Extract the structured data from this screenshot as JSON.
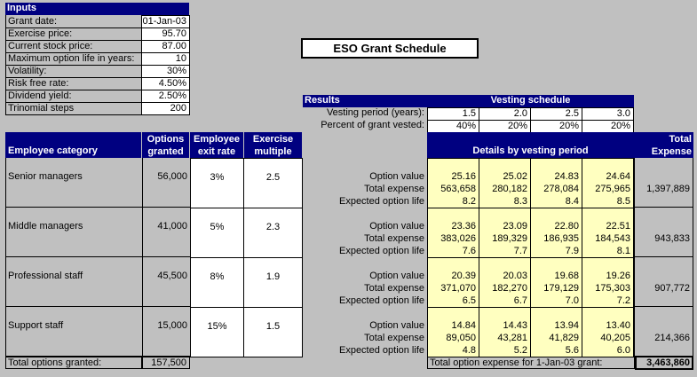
{
  "inputs": {
    "title": "Inputs",
    "rows": [
      {
        "label": "Grant date:",
        "value": "01-Jan-03"
      },
      {
        "label": "Exercise price:",
        "value": "95.70"
      },
      {
        "label": "Current stock price:",
        "value": "87.00"
      },
      {
        "label": "Maximum option life in years:",
        "value": "10"
      },
      {
        "label": "Volatility:",
        "value": "30%"
      },
      {
        "label": "Risk free rate:",
        "value": "4.50%"
      },
      {
        "label": "Dividend yield:",
        "value": "2.50%"
      },
      {
        "label": "Trinomial steps",
        "value": "200"
      }
    ]
  },
  "schedule_title": "ESO Grant Schedule",
  "results": {
    "title": "Results",
    "vesting_title": "Vesting schedule",
    "vesting_period_label": "Vesting period (years):",
    "vesting_periods": [
      "1.5",
      "2.0",
      "2.5",
      "3.0"
    ],
    "percent_vested_label": "Percent of grant vested:",
    "percent_vested": [
      "40%",
      "20%",
      "20%",
      "20%"
    ]
  },
  "table_headers": {
    "category": "Employee category",
    "options_granted": [
      "Options",
      "granted"
    ],
    "exit_rate": [
      "Employee",
      "exit rate"
    ],
    "exercise_multiple": [
      "Exercise",
      "multiple"
    ],
    "details": "Details by vesting period",
    "total_expense": [
      "Total",
      "Expense"
    ]
  },
  "row_labels": [
    "Option value",
    "Total expense",
    "Expected option life"
  ],
  "categories": [
    {
      "name": "Senior managers",
      "options": "56,000",
      "exit_rate": "3%",
      "multiple": "2.5",
      "option_value": [
        "25.16",
        "25.02",
        "24.83",
        "24.64"
      ],
      "total_expense": [
        "563,658",
        "280,182",
        "278,084",
        "275,965"
      ],
      "expected_life": [
        "8.2",
        "8.3",
        "8.4",
        "8.5"
      ],
      "total": "1,397,889"
    },
    {
      "name": "Middle managers",
      "options": "41,000",
      "exit_rate": "5%",
      "multiple": "2.3",
      "option_value": [
        "23.36",
        "23.09",
        "22.80",
        "22.51"
      ],
      "total_expense": [
        "383,026",
        "189,329",
        "186,935",
        "184,543"
      ],
      "expected_life": [
        "7.6",
        "7.7",
        "7.9",
        "8.1"
      ],
      "total": "943,833"
    },
    {
      "name": "Professional staff",
      "options": "45,500",
      "exit_rate": "8%",
      "multiple": "1.9",
      "option_value": [
        "20.39",
        "20.03",
        "19.68",
        "19.26"
      ],
      "total_expense": [
        "371,070",
        "182,270",
        "179,129",
        "175,303"
      ],
      "expected_life": [
        "6.5",
        "6.7",
        "7.0",
        "7.2"
      ],
      "total": "907,772"
    },
    {
      "name": "Support staff",
      "options": "15,000",
      "exit_rate": "15%",
      "multiple": "1.5",
      "option_value": [
        "14.84",
        "14.43",
        "13.94",
        "13.40"
      ],
      "total_expense": [
        "89,050",
        "43,281",
        "41,829",
        "40,205"
      ],
      "expected_life": [
        "4.8",
        "5.2",
        "5.6",
        "6.0"
      ],
      "total": "214,366"
    }
  ],
  "footer": {
    "total_options_label": "Total options granted:",
    "total_options_value": "157,500",
    "total_expense_label": "Total option expense for 1-Jan-03 grant:",
    "total_expense_value": "3,463,860"
  }
}
